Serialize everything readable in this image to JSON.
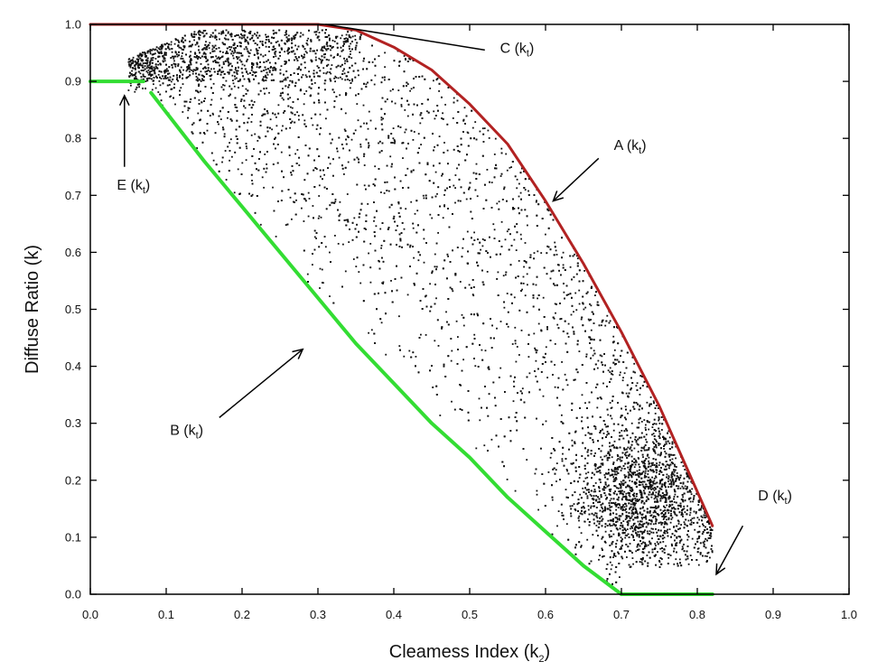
{
  "chart_data": {
    "type": "scatter",
    "title": "",
    "xlabel": "Cleamess Index (k",
    "xlabel_sub": "2",
    "ylabel": "Diffuse Ratio (k)",
    "xlim": [
      0.0,
      1.0
    ],
    "ylim": [
      0.0,
      1.0
    ],
    "xticks": [
      "0.0",
      "0.1",
      "0.2",
      "0.3",
      "0.4",
      "0.5",
      "0.6",
      "0.7",
      "0.8",
      "0.9",
      "1.0"
    ],
    "yticks": [
      "0.0",
      "0.1",
      "0.2",
      "0.3",
      "0.4",
      "0.5",
      "0.6",
      "0.7",
      "0.8",
      "0.9",
      "1.0"
    ],
    "grid": false,
    "colors": {
      "points": "#111111",
      "upper_bound": "#b22222",
      "lower_bound": "#33dd33",
      "axes": "#000000"
    },
    "scatter": {
      "approx_point_count": 9000,
      "x_range": [
        0.05,
        0.82
      ],
      "densest_region": {
        "x": [
          0.65,
          0.8
        ],
        "y": [
          0.05,
          0.3
        ]
      }
    },
    "curves": [
      {
        "id": "A",
        "color": "#b22222",
        "x": [
          0.3,
          0.35,
          0.4,
          0.45,
          0.5,
          0.55,
          0.6,
          0.65,
          0.7,
          0.75,
          0.8,
          0.82
        ],
        "y": [
          1.0,
          0.99,
          0.96,
          0.92,
          0.86,
          0.79,
          0.69,
          0.58,
          0.46,
          0.33,
          0.18,
          0.12
        ]
      },
      {
        "id": "B",
        "color": "#33dd33",
        "x": [
          0.08,
          0.15,
          0.2,
          0.25,
          0.3,
          0.35,
          0.4,
          0.45,
          0.5,
          0.55,
          0.6,
          0.65,
          0.7
        ],
        "y": [
          0.88,
          0.76,
          0.68,
          0.6,
          0.52,
          0.44,
          0.37,
          0.3,
          0.24,
          0.17,
          0.11,
          0.05,
          0.0
        ]
      },
      {
        "id": "C",
        "color": "#b22222",
        "x": [
          0.0,
          0.3
        ],
        "y": [
          1.0,
          1.0
        ]
      },
      {
        "id": "D",
        "color": "#33dd33",
        "x": [
          0.7,
          0.82
        ],
        "y": [
          0.0,
          0.0
        ]
      },
      {
        "id": "E",
        "color": "#33dd33",
        "x": [
          0.0,
          0.07
        ],
        "y": [
          0.9,
          0.9
        ]
      }
    ],
    "annotations": [
      {
        "key": "C",
        "text": "C (k",
        "sub": "t",
        "text_xy": [
          0.54,
          0.95
        ],
        "arrow_from": [
          0.52,
          0.955
        ],
        "arrow_to": [
          0.31,
          1.0
        ],
        "head": false
      },
      {
        "key": "A",
        "text": "A (k",
        "sub": "t",
        "text_xy": [
          0.69,
          0.78
        ],
        "arrow_from": [
          0.67,
          0.765
        ],
        "arrow_to": [
          0.61,
          0.69
        ],
        "head": true
      },
      {
        "key": "E",
        "text": "E (k",
        "sub": "t",
        "text_xy": [
          0.035,
          0.71
        ],
        "arrow_from": [
          0.045,
          0.75
        ],
        "arrow_to": [
          0.045,
          0.875
        ],
        "head": true
      },
      {
        "key": "B",
        "text": "B (k",
        "sub": "t",
        "text_xy": [
          0.105,
          0.28
        ],
        "arrow_from": [
          0.17,
          0.31
        ],
        "arrow_to": [
          0.28,
          0.43
        ],
        "head": true
      },
      {
        "key": "D",
        "text": "D (k",
        "sub": "t",
        "text_xy": [
          0.88,
          0.165
        ],
        "arrow_from": [
          0.86,
          0.12
        ],
        "arrow_to": [
          0.825,
          0.035
        ],
        "head": true
      }
    ]
  }
}
